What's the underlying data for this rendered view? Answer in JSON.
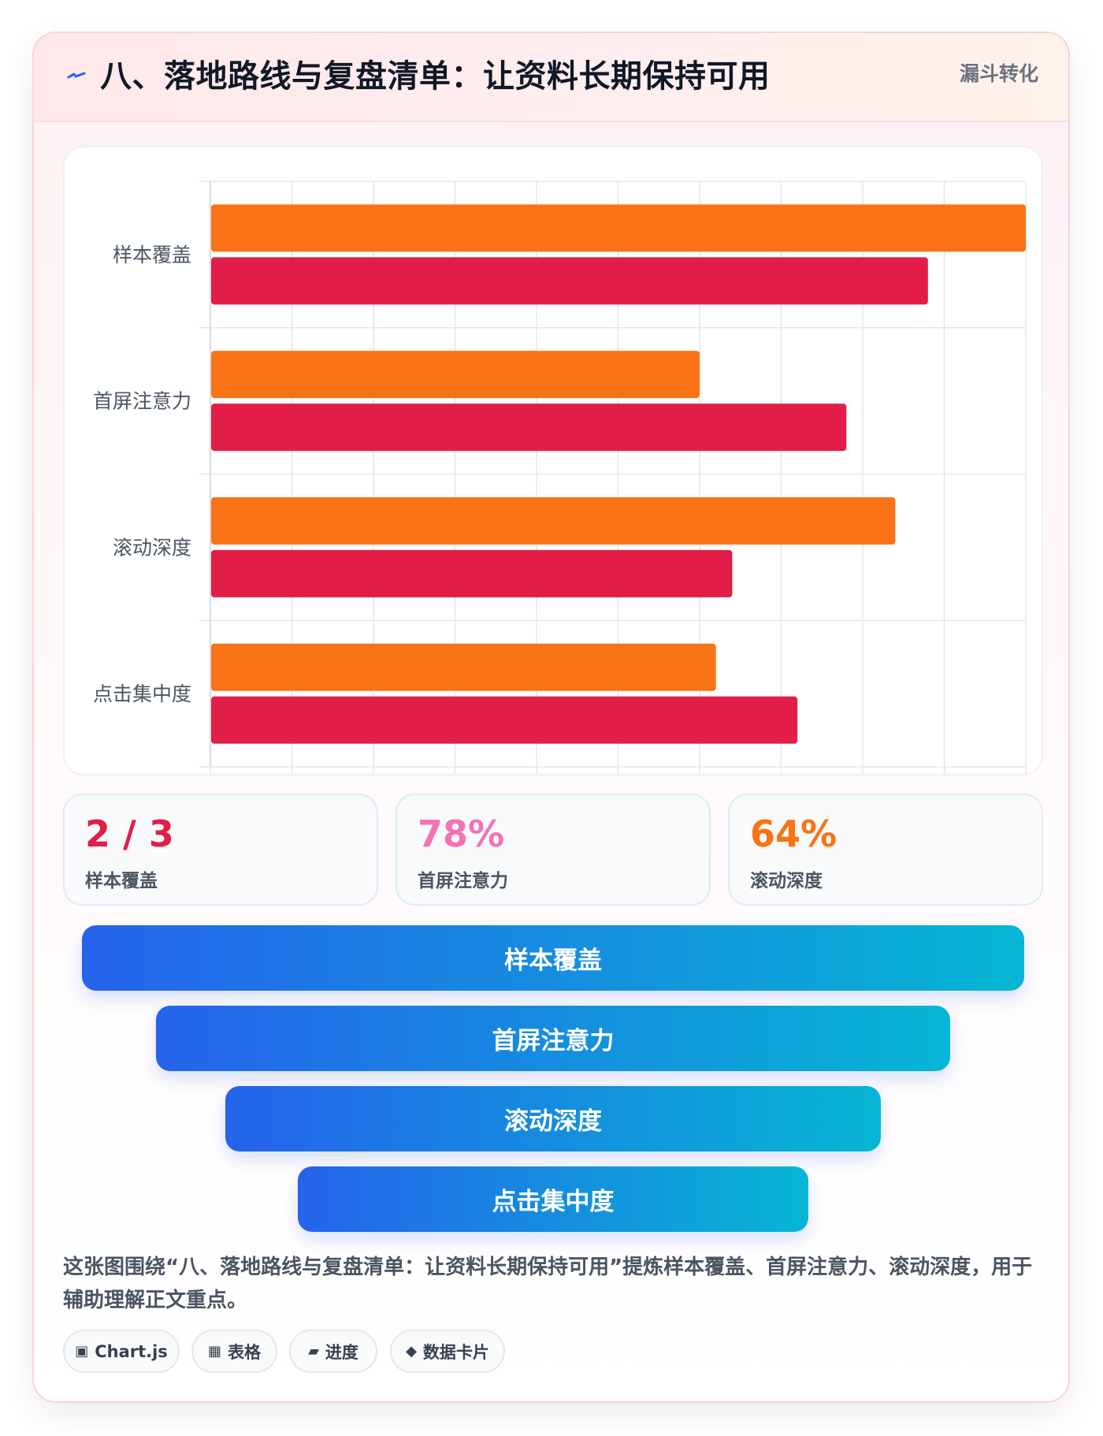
{
  "header": {
    "title": "八、落地路线与复盘清单：让资料长期保持可用",
    "tag": "漏斗转化",
    "icon": "lightning-icon"
  },
  "chart_data": {
    "type": "bar",
    "orientation": "horizontal",
    "categories": [
      "样本覆盖",
      "首屏注意力",
      "滚动深度",
      "点击集中度"
    ],
    "series": [
      {
        "color": "#f97316",
        "values": [
          100,
          60,
          84,
          62
        ]
      },
      {
        "color": "#e11d48",
        "values": [
          88,
          78,
          64,
          72
        ]
      }
    ],
    "xlim": [
      0,
      100
    ],
    "xticks": [
      "0",
      "10",
      "20",
      "30",
      "40",
      "50",
      "60",
      "70",
      "80",
      "90",
      "100"
    ],
    "grid": true,
    "legend": "none"
  },
  "stats": [
    {
      "value": "2 / 3",
      "label": "样本覆盖",
      "color": "#e11d48"
    },
    {
      "value": "78%",
      "label": "首屏注意力",
      "color": "#f472b6"
    },
    {
      "value": "64%",
      "label": "滚动深度",
      "color": "#f97316"
    }
  ],
  "funnel": [
    "样本覆盖",
    "首屏注意力",
    "滚动深度",
    "点击集中度"
  ],
  "description": "这张图围绕“八、落地路线与复盘清单：让资料长期保持可用”提炼样本覆盖、首屏注意力、滚动深度，用于辅助理解正文重点。",
  "chips": [
    {
      "icon": "▣",
      "label": "Chart.js"
    },
    {
      "icon": "▦",
      "label": "表格"
    },
    {
      "icon": "▰",
      "label": "进度"
    },
    {
      "icon": "◆",
      "label": "数据卡片"
    }
  ]
}
